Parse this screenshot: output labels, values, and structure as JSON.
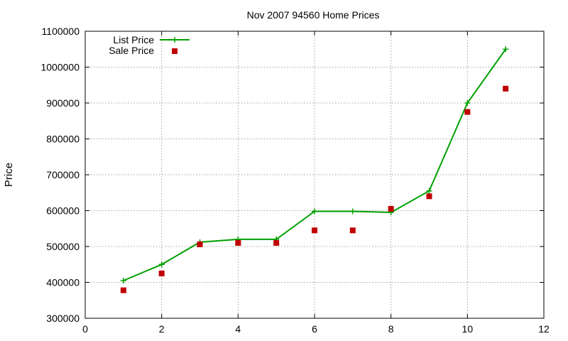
{
  "chart_data": {
    "type": "line",
    "title": "Nov 2007 94560 Home Prices",
    "xlabel": "",
    "ylabel": "Price",
    "xlim": [
      0,
      12
    ],
    "ylim": [
      300000,
      1100000
    ],
    "x_ticks": [
      0,
      2,
      4,
      6,
      8,
      10,
      12
    ],
    "y_ticks": [
      300000,
      400000,
      500000,
      600000,
      700000,
      800000,
      900000,
      1000000,
      1100000
    ],
    "grid": true,
    "legend_position": "top-left",
    "series": [
      {
        "name": "List Price",
        "style": "linespoints",
        "color": "#00a000",
        "x": [
          1,
          2,
          3,
          4,
          5,
          6,
          7,
          8,
          9,
          10,
          11
        ],
        "y": [
          405000,
          450000,
          512000,
          520000,
          520000,
          598000,
          598000,
          595000,
          655000,
          900000,
          1050000
        ]
      },
      {
        "name": "Sale Price",
        "style": "points",
        "color": "#c00000",
        "x": [
          1,
          2,
          3,
          4,
          5,
          6,
          7,
          8,
          9,
          10,
          11
        ],
        "y": [
          378000,
          425000,
          506000,
          510000,
          510000,
          545000,
          545000,
          605000,
          640000,
          875000,
          940000
        ]
      }
    ]
  }
}
